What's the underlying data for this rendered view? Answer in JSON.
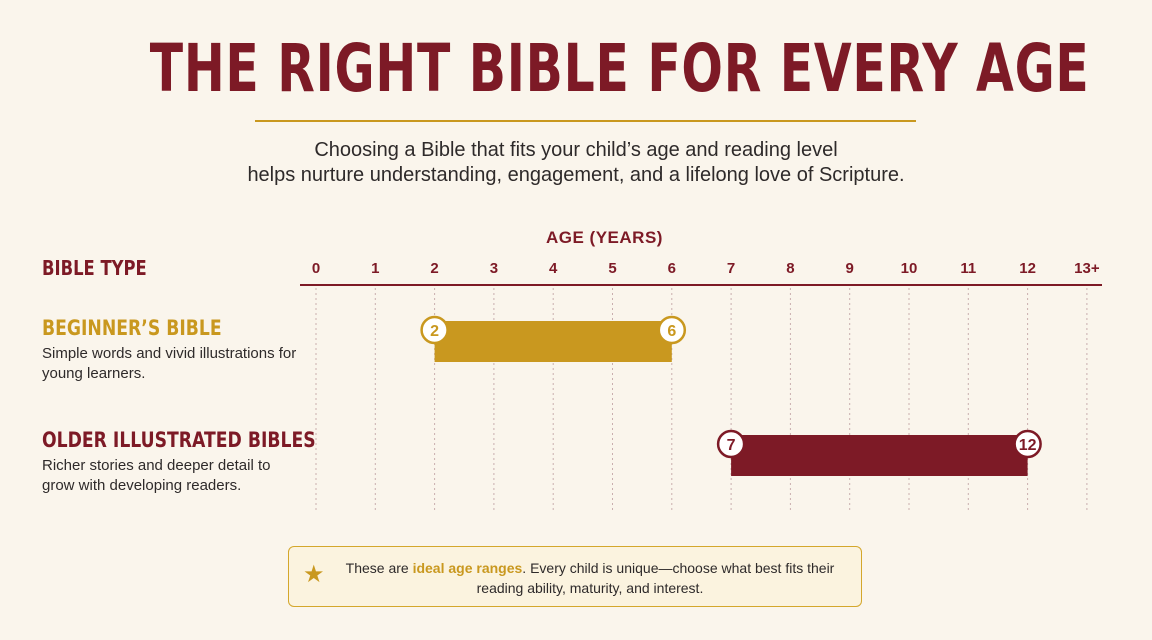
{
  "title": "THE RIGHT BIBLE FOR EVERY AGE",
  "subtitle": {
    "line1": "Choosing a Bible that fits your child’s age and reading level",
    "line2": "helps nurture understanding, engagement, and a lifelong love of Scripture."
  },
  "colors": {
    "title": "#7d1a26",
    "rule": "#c9981f",
    "gold": "#c9981f",
    "crimson": "#7d1a26",
    "grid": "#c9aeae"
  },
  "chart_data": {
    "type": "bar",
    "orientation": "horizontal-range",
    "xlabel": "AGE (YEARS)",
    "ylabel": "BIBLE TYPE",
    "x_ticks": [
      "0",
      "1",
      "2",
      "3",
      "4",
      "5",
      "6",
      "7",
      "8",
      "9",
      "10",
      "11",
      "12",
      "13+"
    ],
    "xlim": [
      0,
      13
    ],
    "grid": true,
    "series": [
      {
        "name": "BEGINNER’S BIBLE",
        "description": "Simple words and vivid illustrations for young learners.",
        "start": 2,
        "end": 6,
        "start_label": "2",
        "end_label": "6",
        "color": "#c9981f"
      },
      {
        "name": "OLDER ILLUSTRATED BIBLES",
        "description": "Richer stories and deeper detail to grow with developing readers.",
        "start": 7,
        "end": 12,
        "start_label": "7",
        "end_label": "12",
        "color": "#7d1a26"
      }
    ]
  },
  "note": {
    "icon": "star-icon",
    "pre": "These are ",
    "highlight": "ideal age ranges",
    "post": ". Every child is unique—choose what best fits their reading ability, maturity, and interest."
  }
}
